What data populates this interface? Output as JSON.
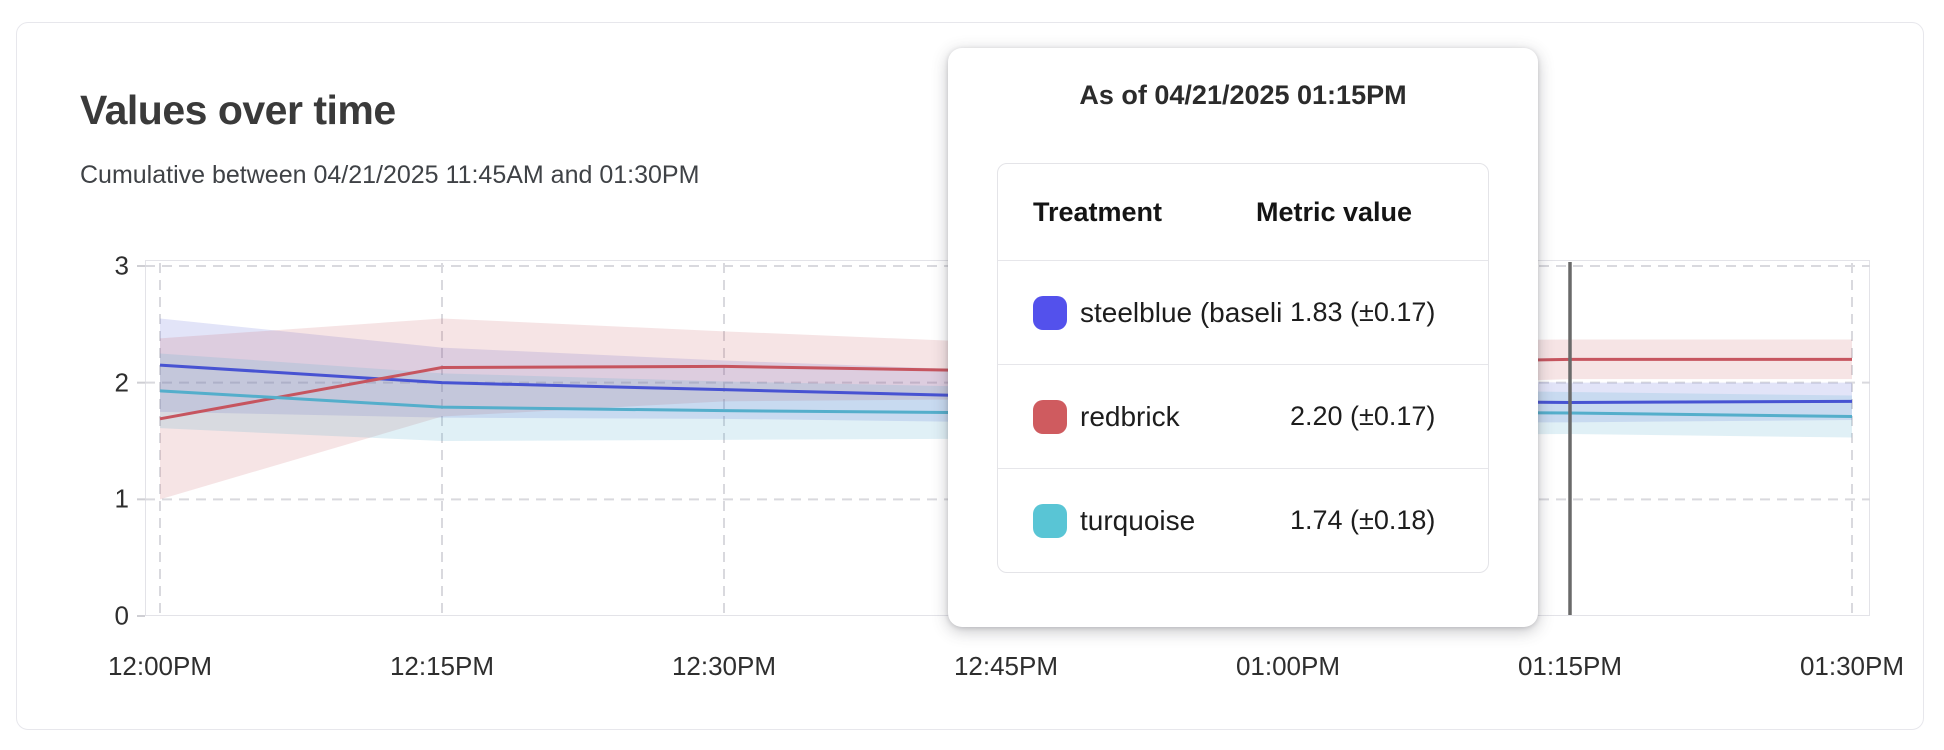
{
  "card": {
    "title": "Values over time",
    "subtitle": "Cumulative between 04/21/2025 11:45AM and 01:30PM"
  },
  "tooltip": {
    "title": "As of 04/21/2025 01:15PM",
    "columns": {
      "treatment": "Treatment",
      "metric_value": "Metric value"
    },
    "rows": [
      {
        "name": "steelblue  (baseli",
        "value": "1.83 (±0.17)",
        "swatch_color": "#5351ec"
      },
      {
        "name": "redbrick",
        "value": "2.20 (±0.17)",
        "swatch_color": "#cf5b5f"
      },
      {
        "name": "turquoise",
        "value": "1.74 (±0.18)",
        "swatch_color": "#59c5d5"
      }
    ]
  },
  "chart_data": {
    "type": "line",
    "title": "Values over time",
    "subtitle": "Cumulative between 04/21/2025 11:45AM and 01:30PM",
    "x_tick_labels": [
      "12:00PM",
      "12:15PM",
      "12:30PM",
      "12:45PM",
      "01:00PM",
      "01:15PM",
      "01:30PM"
    ],
    "y_ticks": [
      0,
      1,
      2,
      3
    ],
    "ylim": [
      0,
      3
    ],
    "grid": "dashed",
    "legend_position": "tooltip-only",
    "cursor": {
      "x_label": "01:15PM",
      "x_index": 5,
      "color": "#6a6a6a"
    },
    "note": "shaded areas are ± confidence bands around each line",
    "series": [
      {
        "name": "steelblue (baseline)",
        "line_color": "#4753d2",
        "band_color": "rgba(73, 85, 210, 0.16)",
        "values": [
          2.15,
          2.0,
          1.94,
          1.88,
          1.85,
          1.83,
          1.84
        ],
        "ci": [
          0.4,
          0.3,
          0.25,
          0.22,
          0.19,
          0.17,
          0.16
        ]
      },
      {
        "name": "redbrick",
        "line_color": "#c6555f",
        "band_color": "rgba(198, 85, 95, 0.16)",
        "values": [
          1.69,
          2.13,
          2.14,
          2.1,
          2.16,
          2.2,
          2.2
        ],
        "ci": [
          0.69,
          0.42,
          0.3,
          0.24,
          0.2,
          0.17,
          0.17
        ]
      },
      {
        "name": "turquoise",
        "line_color": "#54aecb",
        "band_color": "rgba(84, 174, 203, 0.18)",
        "values": [
          1.93,
          1.79,
          1.76,
          1.74,
          1.75,
          1.74,
          1.71
        ],
        "ci": [
          0.32,
          0.29,
          0.25,
          0.22,
          0.2,
          0.18,
          0.18
        ]
      }
    ]
  }
}
